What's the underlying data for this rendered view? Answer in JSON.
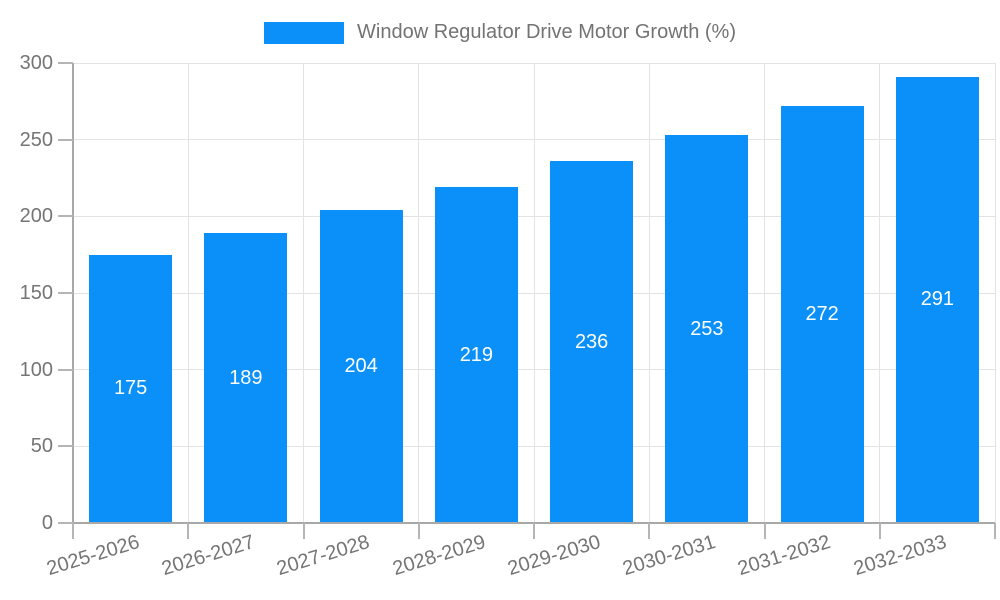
{
  "chart_data": {
    "type": "bar",
    "categories": [
      "2025-2026",
      "2026-2027",
      "2027-2028",
      "2028-2029",
      "2029-2030",
      "2030-2031",
      "2031-2032",
      "2032-2033"
    ],
    "series": [
      {
        "name": "Window Regulator Drive Motor Growth (%)",
        "values": [
          175,
          189,
          204,
          219,
          236,
          253,
          272,
          291
        ],
        "color": "#0a90f8"
      }
    ],
    "bar_value_labels_shown": true,
    "bar_label_color": "#ffffff",
    "title": "",
    "xlabel": "",
    "ylabel": "",
    "ylim": [
      0,
      300
    ],
    "yticks": [
      0,
      50,
      100,
      150,
      200,
      250,
      300
    ],
    "x_tick_rotation_deg": -17,
    "grid": true,
    "legend_position": "top-center",
    "colors": {
      "background": "#ffffff",
      "gridline": "#e3e3e3",
      "axis_line": "#a8a8a8",
      "tick_mark": "#b5b5b5",
      "axis_text": "#757575",
      "legend_text": "#737373"
    }
  }
}
